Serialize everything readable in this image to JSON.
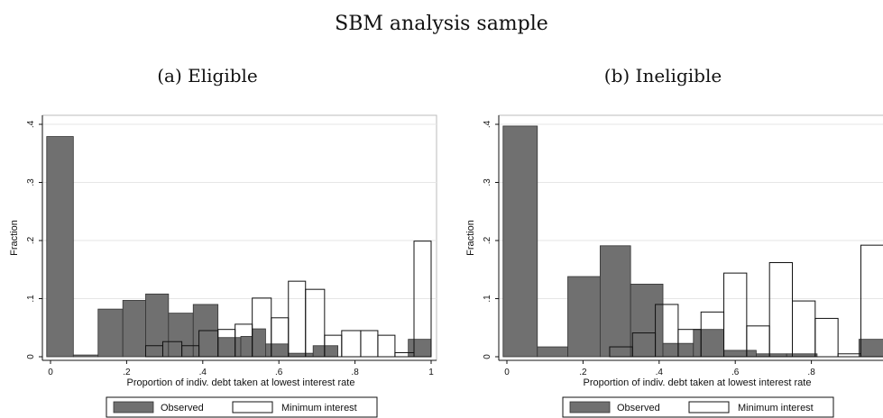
{
  "title": "SBM analysis sample",
  "legend": {
    "observed": "Observed",
    "minimum": "Minimum interest"
  },
  "colors": {
    "observed": "#707070",
    "minimum": "#ffffff",
    "grid": "#e6e6e6",
    "stroke": "#111111"
  },
  "chart_data": [
    {
      "type": "bar",
      "panel_title": "(a) Eligible",
      "xlabel": "Proportion of indiv. debt taken at lowest interest rate",
      "ylabel": "Fraction",
      "xlim": [
        0,
        1
      ],
      "ylim": [
        0,
        0.4
      ],
      "xticks": [
        "0",
        ".2",
        ".4",
        ".6",
        ".8",
        "1"
      ],
      "xtick_values": [
        0,
        0.2,
        0.4,
        0.6,
        0.8,
        1
      ],
      "yticks": [
        "0",
        ".1",
        ".2",
        ".3",
        ".4"
      ],
      "ytick_values": [
        0,
        0.1,
        0.2,
        0.3,
        0.4
      ],
      "grid": true,
      "legend_position": "bottom",
      "series": [
        {
          "name": "Observed",
          "bins": [
            [
              -0.01,
              0.06,
              0.379
            ],
            [
              0.06,
              0.125,
              0.003
            ],
            [
              0.125,
              0.19,
              0.082
            ],
            [
              0.19,
              0.25,
              0.097
            ],
            [
              0.25,
              0.31,
              0.108
            ],
            [
              0.31,
              0.375,
              0.075
            ],
            [
              0.375,
              0.44,
              0.09
            ],
            [
              0.44,
              0.5,
              0.033
            ],
            [
              0.5,
              0.53,
              0.035
            ],
            [
              0.53,
              0.565,
              0.048
            ],
            [
              0.565,
              0.625,
              0.022
            ],
            [
              0.625,
              0.69,
              0.006
            ],
            [
              0.69,
              0.755,
              0.019
            ],
            [
              0.94,
              1.0,
              0.03
            ]
          ]
        },
        {
          "name": "Minimum interest",
          "bins": [
            [
              0.25,
              0.295,
              0.019
            ],
            [
              0.295,
              0.345,
              0.026
            ],
            [
              0.345,
              0.39,
              0.019
            ],
            [
              0.39,
              0.44,
              0.045
            ],
            [
              0.44,
              0.485,
              0.047
            ],
            [
              0.485,
              0.53,
              0.056
            ],
            [
              0.53,
              0.58,
              0.101
            ],
            [
              0.58,
              0.625,
              0.067
            ],
            [
              0.625,
              0.67,
              0.13
            ],
            [
              0.67,
              0.72,
              0.116
            ],
            [
              0.72,
              0.765,
              0.037
            ],
            [
              0.765,
              0.815,
              0.045
            ],
            [
              0.815,
              0.86,
              0.045
            ],
            [
              0.86,
              0.905,
              0.037
            ],
            [
              0.905,
              0.955,
              0.007
            ],
            [
              0.955,
              1.0,
              0.199
            ]
          ]
        }
      ]
    },
    {
      "type": "bar",
      "panel_title": "(b) Ineligible",
      "xlabel": "Proportion of indiv. debt taken at lowest interest rate",
      "ylabel": "Fraction",
      "xlim": [
        0,
        1
      ],
      "ylim": [
        0,
        0.4
      ],
      "xticks": [
        "0",
        ".2",
        ".4",
        ".6",
        ".8"
      ],
      "xtick_values": [
        0,
        0.2,
        0.4,
        0.6,
        0.8
      ],
      "yticks": [
        "0",
        ".1",
        ".2",
        ".3",
        ".4"
      ],
      "ytick_values": [
        0,
        0.1,
        0.2,
        0.3,
        0.4
      ],
      "grid": true,
      "legend_position": "bottom",
      "series": [
        {
          "name": "Observed",
          "bins": [
            [
              -0.01,
              0.08,
              0.397
            ],
            [
              0.08,
              0.16,
              0.017
            ],
            [
              0.16,
              0.245,
              0.138
            ],
            [
              0.245,
              0.325,
              0.191
            ],
            [
              0.325,
              0.41,
              0.125
            ],
            [
              0.41,
              0.45,
              0.023
            ],
            [
              0.45,
              0.49,
              0.023
            ],
            [
              0.49,
              0.57,
              0.047
            ],
            [
              0.57,
              0.655,
              0.011
            ],
            [
              0.655,
              0.735,
              0.005
            ],
            [
              0.735,
              0.815,
              0.005
            ],
            [
              0.925,
              1.0,
              0.03
            ]
          ]
        },
        {
          "name": "Minimum interest",
          "bins": [
            [
              0.27,
              0.33,
              0.017
            ],
            [
              0.33,
              0.39,
              0.041
            ],
            [
              0.39,
              0.45,
              0.09
            ],
            [
              0.45,
              0.51,
              0.047
            ],
            [
              0.51,
              0.57,
              0.077
            ],
            [
              0.57,
              0.63,
              0.144
            ],
            [
              0.63,
              0.69,
              0.053
            ],
            [
              0.69,
              0.75,
              0.162
            ],
            [
              0.75,
              0.81,
              0.096
            ],
            [
              0.81,
              0.87,
              0.066
            ],
            [
              0.87,
              0.93,
              0.005
            ],
            [
              0.93,
              1.0,
              0.192
            ]
          ]
        }
      ]
    }
  ]
}
